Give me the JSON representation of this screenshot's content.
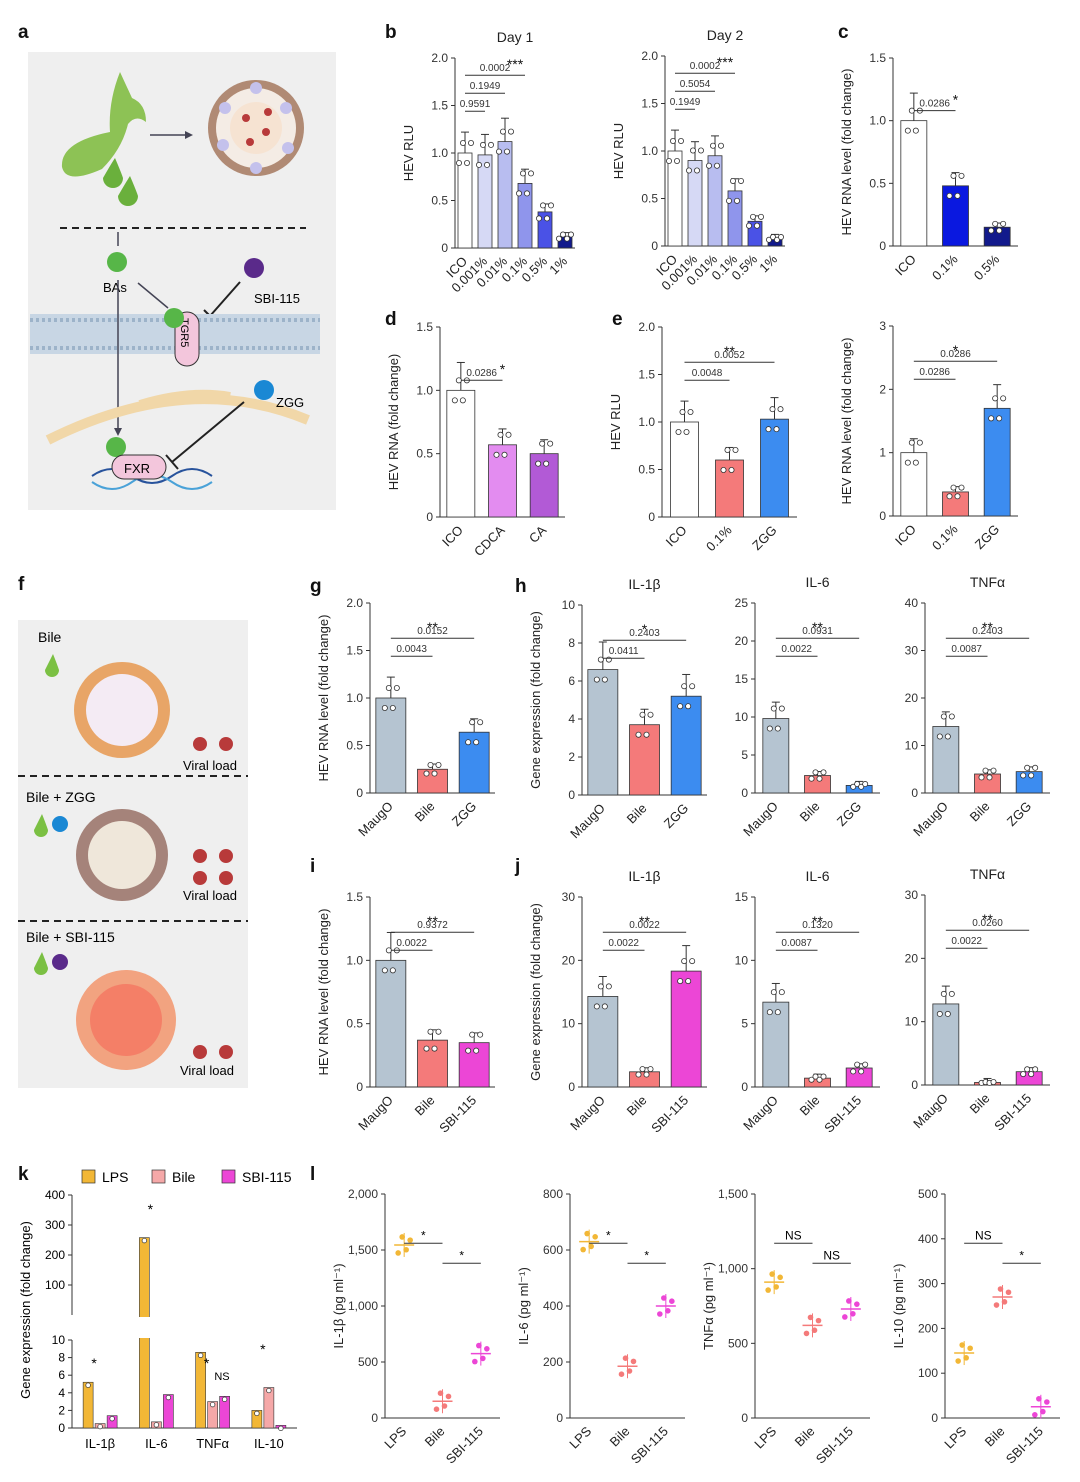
{
  "panel_letters": [
    "a",
    "b",
    "c",
    "d",
    "e",
    "f",
    "g",
    "h",
    "i",
    "j",
    "k",
    "l"
  ],
  "schematic_a": {
    "label_bas": "BAs",
    "label_sbi": "SBI-115",
    "label_tgr5": "TGR5",
    "label_zgg": "ZGG",
    "label_fxr": "FXR"
  },
  "schematic_f": {
    "p1_title": "Bile",
    "p2_title": "Bile + ZGG",
    "p3_title": "Bile + SBI-115",
    "viral_load": "Viral load"
  },
  "colors": {
    "ico": "#ffffff",
    "b1": "#d6d9f5",
    "b2": "#b8bdf0",
    "b3": "#8f95ec",
    "b4": "#4a52e6",
    "b5": "#2a2fd6",
    "b6": "#121a8c",
    "blue01": "#0a18e0",
    "cdca": "#e38cf0",
    "ca": "#b25ad6",
    "bile": "#f47a7a",
    "zgg": "#3c8cf0",
    "maugo": "#b5c4d1",
    "sbi": "#ec46d6",
    "lps": "#f2b736",
    "bilek": "#f5a8a8"
  },
  "chart_data": [
    {
      "id": "b1",
      "type": "bar",
      "title": "Day 1",
      "ylabel": "HEV RLU",
      "categories": [
        "ICO",
        "0.001%",
        "0.01%",
        "0.1%",
        "0.5%",
        "1%"
      ],
      "values": [
        1.0,
        0.98,
        1.12,
        0.68,
        0.38,
        0.12
      ],
      "ylim": [
        0,
        2.0
      ],
      "yticks": [
        "0",
        "0.5",
        "1.0",
        "1.5",
        "2.0"
      ],
      "p": [
        "0.9591",
        "0.1949",
        "0.0002"
      ],
      "stars": "***"
    },
    {
      "id": "b2",
      "type": "bar",
      "title": "Day 2",
      "ylabel": "HEV RLU",
      "categories": [
        "ICO",
        "0.001%",
        "0.01%",
        "0.1%",
        "0.5%",
        "1%"
      ],
      "values": [
        1.0,
        0.9,
        0.95,
        0.58,
        0.26,
        0.08
      ],
      "ylim": [
        0,
        2.0
      ],
      "yticks": [
        "0",
        "0.5",
        "1.0",
        "1.5",
        "2.0"
      ],
      "p": [
        "0.1949",
        "0.5054",
        "0.0002"
      ],
      "stars": "***"
    },
    {
      "id": "c",
      "type": "bar",
      "title": "",
      "ylabel": "HEV RNA level (fold change)",
      "categories": [
        "ICO",
        "0.1%",
        "0.5%"
      ],
      "values": [
        1.0,
        0.48,
        0.15
      ],
      "ylim": [
        0,
        1.5
      ],
      "yticks": [
        "0",
        "0.5",
        "1.0",
        "1.5"
      ],
      "p": [
        "0.0286"
      ],
      "stars": "*"
    },
    {
      "id": "d",
      "type": "bar",
      "title": "",
      "ylabel": "HEV RNA (fold change)",
      "categories": [
        "ICO",
        "CDCA",
        "CA"
      ],
      "values": [
        1.0,
        0.57,
        0.5
      ],
      "ylim": [
        0,
        1.5
      ],
      "yticks": [
        "0",
        "0.5",
        "1.0",
        "1.5"
      ],
      "p": [
        "0.0286"
      ],
      "stars": "*"
    },
    {
      "id": "e1",
      "type": "bar",
      "title": "",
      "ylabel": "HEV RLU",
      "categories": [
        "ICO",
        "0.1%",
        "ZGG"
      ],
      "values": [
        1.0,
        0.6,
        1.03
      ],
      "ylim": [
        0,
        2.0
      ],
      "yticks": [
        "0",
        "0.5",
        "1.0",
        "1.5",
        "2.0"
      ],
      "p": [
        "0.0048",
        "0.0052"
      ],
      "stars": "**"
    },
    {
      "id": "e2",
      "type": "bar",
      "title": "",
      "ylabel": "HEV RNA level (fold change)",
      "categories": [
        "ICO",
        "0.1%",
        "ZGG"
      ],
      "values": [
        1.0,
        0.38,
        1.7
      ],
      "ylim": [
        0,
        3
      ],
      "yticks": [
        "0",
        "1",
        "2",
        "3"
      ],
      "p": [
        "0.0286",
        "0.0286"
      ],
      "stars": "*"
    },
    {
      "id": "g",
      "type": "bar",
      "title": "",
      "ylabel": "HEV RNA level (fold change)",
      "categories": [
        "MaugO",
        "Bile",
        "ZGG"
      ],
      "values": [
        1.0,
        0.25,
        0.64
      ],
      "ylim": [
        0,
        2.0
      ],
      "yticks": [
        "0",
        "0.5",
        "1.0",
        "1.5",
        "2.0"
      ],
      "p": [
        "0.0043",
        "0.0152"
      ],
      "stars": "**"
    },
    {
      "id": "h1",
      "type": "bar",
      "title": "IL-1β",
      "ylabel": "Gene expression (fold change)",
      "categories": [
        "MaugO",
        "Bile",
        "ZGG"
      ],
      "values": [
        6.6,
        3.7,
        5.2
      ],
      "ylim": [
        0,
        10
      ],
      "yticks": [
        "0",
        "2",
        "4",
        "6",
        "8",
        "10"
      ],
      "p": [
        "0.0411",
        "0.2403"
      ],
      "stars": "*"
    },
    {
      "id": "h2",
      "type": "bar",
      "title": "IL-6",
      "ylabel": "",
      "categories": [
        "MaugO",
        "Bile",
        "ZGG"
      ],
      "values": [
        9.8,
        2.3,
        1.0
      ],
      "ylim": [
        0,
        25
      ],
      "yticks": [
        "0",
        "5",
        "10",
        "15",
        "20",
        "25"
      ],
      "p": [
        "0.0022",
        "0.0931"
      ],
      "stars": "**"
    },
    {
      "id": "h3",
      "type": "bar",
      "title": "TNFα",
      "ylabel": "",
      "categories": [
        "MaugO",
        "Bile",
        "ZGG"
      ],
      "values": [
        14.0,
        4.0,
        4.5
      ],
      "ylim": [
        0,
        40
      ],
      "yticks": [
        "0",
        "10",
        "20",
        "30",
        "40"
      ],
      "p": [
        "0.0087",
        "0.2403"
      ],
      "stars": "**"
    },
    {
      "id": "i",
      "type": "bar",
      "title": "",
      "ylabel": "HEV RNA level (fold change)",
      "categories": [
        "MaugO",
        "Bile",
        "SBI-115"
      ],
      "values": [
        1.0,
        0.37,
        0.35
      ],
      "ylim": [
        0,
        1.5
      ],
      "yticks": [
        "0",
        "0.5",
        "1.0",
        "1.5"
      ],
      "p": [
        "0.0022",
        "0.9372"
      ],
      "stars": "**"
    },
    {
      "id": "j1",
      "type": "bar",
      "title": "IL-1β",
      "ylabel": "Gene expression (fold change)",
      "categories": [
        "MaugO",
        "Bile",
        "SBI-115"
      ],
      "values": [
        14.3,
        2.4,
        18.3
      ],
      "ylim": [
        0,
        30
      ],
      "yticks": [
        "0",
        "10",
        "20",
        "30"
      ],
      "p": [
        "0.0022",
        "0.0022"
      ],
      "stars": "**"
    },
    {
      "id": "j2",
      "type": "bar",
      "title": "IL-6",
      "ylabel": "",
      "categories": [
        "MaugO",
        "Bile",
        "SBI-115"
      ],
      "values": [
        6.7,
        0.7,
        1.5
      ],
      "ylim": [
        0,
        15
      ],
      "yticks": [
        "0",
        "5",
        "10",
        "15"
      ],
      "p": [
        "0.0087",
        "0.1320"
      ],
      "stars": "**"
    },
    {
      "id": "j3",
      "type": "bar",
      "title": "TNFα",
      "ylabel": "",
      "categories": [
        "MaugO",
        "Bile",
        "SBI-115"
      ],
      "values": [
        12.8,
        0.4,
        2.1
      ],
      "ylim": [
        0,
        30
      ],
      "yticks": [
        "0",
        "10",
        "20",
        "30"
      ],
      "p": [
        "0.0022",
        "0.0260"
      ],
      "stars": "**"
    },
    {
      "id": "k",
      "type": "bar",
      "title": "",
      "ylabel": "Gene expression (fold change)",
      "legend": [
        "LPS",
        "Bile",
        "SBI-115"
      ],
      "categories": [
        "IL-1β",
        "IL-6",
        "TNFα",
        "IL-10"
      ],
      "series": [
        {
          "name": "LPS",
          "values": [
            5.2,
            258,
            8.6,
            2.0
          ]
        },
        {
          "name": "Bile",
          "values": [
            0.5,
            0.7,
            3.0,
            4.6
          ]
        },
        {
          "name": "SBI-115",
          "values": [
            1.4,
            3.8,
            3.6,
            0.3
          ]
        }
      ],
      "yticks_low": [
        "0",
        "2",
        "4",
        "6",
        "8",
        "10"
      ],
      "yticks_high": [
        "100",
        "200",
        "300",
        "400"
      ],
      "stars": "*",
      "ns": "NS"
    },
    {
      "id": "l1",
      "type": "scatter",
      "title": "",
      "ylabel": "IL-1β (pg ml⁻¹)",
      "categories": [
        "LPS",
        "Bile",
        "SBI-115"
      ],
      "values": [
        1545,
        150,
        575
      ],
      "ylim": [
        0,
        2000
      ],
      "yticks": [
        "0",
        "500",
        "1,000",
        "1,500",
        "2,000"
      ],
      "stars": "*"
    },
    {
      "id": "l2",
      "type": "scatter",
      "title": "",
      "ylabel": "IL-6 (pg ml⁻¹)",
      "categories": [
        "LPS",
        "Bile",
        "SBI-115"
      ],
      "values": [
        630,
        185,
        400
      ],
      "ylim": [
        0,
        800
      ],
      "yticks": [
        "0",
        "200",
        "400",
        "600",
        "800"
      ],
      "stars": "*"
    },
    {
      "id": "l3",
      "type": "scatter",
      "title": "",
      "ylabel": "TNFα (pg ml⁻¹)",
      "categories": [
        "LPS",
        "Bile",
        "SBI-115"
      ],
      "values": [
        910,
        620,
        730
      ],
      "ylim": [
        0,
        1500
      ],
      "yticks": [
        "0",
        "500",
        "1,000",
        "1,500"
      ],
      "ns": "NS"
    },
    {
      "id": "l4",
      "type": "scatter",
      "title": "",
      "ylabel": "IL-10 (pg ml⁻¹)",
      "categories": [
        "LPS",
        "Bile",
        "SBI-115"
      ],
      "values": [
        145,
        270,
        25
      ],
      "ylim": [
        0,
        500
      ],
      "yticks": [
        "0",
        "100",
        "200",
        "300",
        "400",
        "500"
      ],
      "ns": "NS",
      "stars": "*"
    }
  ]
}
